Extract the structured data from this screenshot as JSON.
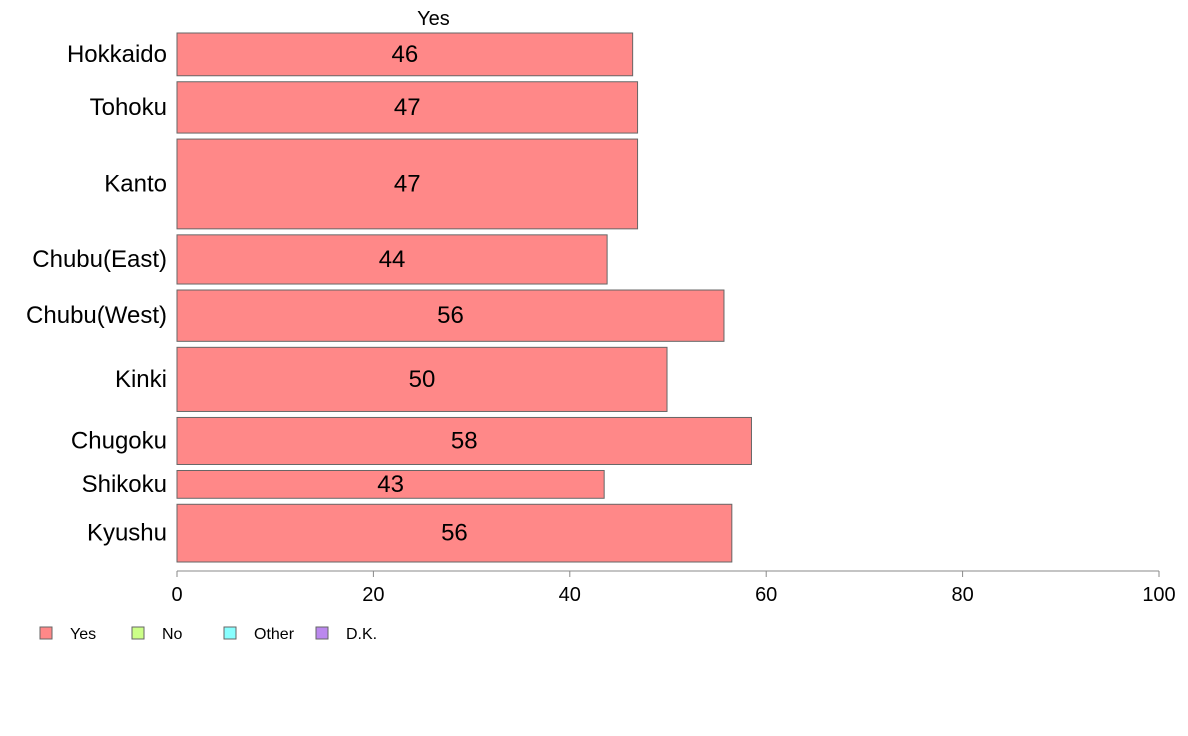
{
  "chart_data": {
    "type": "bar",
    "orientation": "horizontal",
    "stacked": true,
    "series_heading": "Yes",
    "categories": [
      "Hokkaido",
      "Tohoku",
      "Kanto",
      "Chubu(East)",
      "Chubu(West)",
      "Kinki",
      "Chugoku",
      "Shikoku",
      "Kyushu"
    ],
    "category_weights": [
      1.0,
      1.2,
      2.1,
      1.15,
      1.2,
      1.5,
      1.1,
      0.65,
      1.35
    ],
    "series": [
      {
        "name": "Yes",
        "values": [
          46.4,
          46.9,
          46.9,
          43.8,
          55.7,
          49.9,
          58.5,
          43.5,
          56.5
        ],
        "labels": [
          "46",
          "47",
          "47",
          "44",
          "56",
          "50",
          "58",
          "43",
          "56"
        ],
        "color": "#ff8888"
      }
    ],
    "legend": [
      {
        "name": "Yes",
        "color": "#ff8888"
      },
      {
        "name": "No",
        "color": "#ccff88"
      },
      {
        "name": "Other",
        "color": "#88ffff"
      },
      {
        "name": "D.K.",
        "color": "#bb88ee"
      }
    ],
    "legend_position": "bottom-left",
    "xlim": [
      0,
      100
    ],
    "xticks": [
      0,
      20,
      40,
      60,
      80,
      100
    ],
    "grid": false,
    "bar_stroke": "#666666"
  }
}
